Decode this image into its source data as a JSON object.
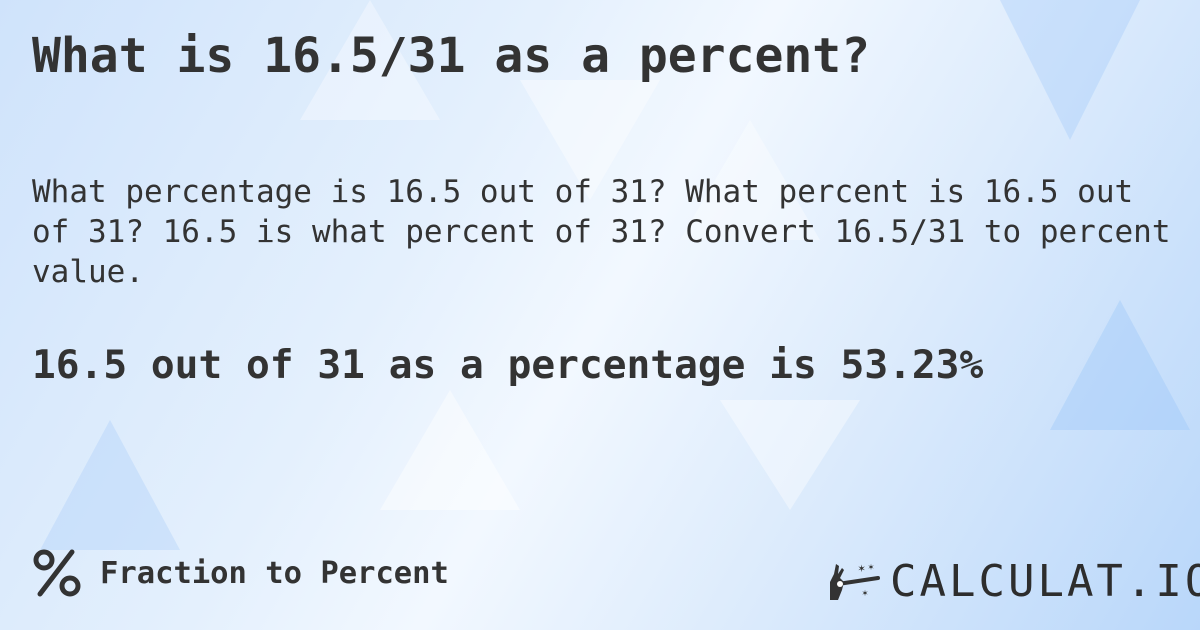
{
  "title": "What is 16.5/31 as a percent?",
  "question": "What percentage is 16.5 out of 31? What percent is 16.5 out of 31? 16.5 is what percent of 31? Convert 16.5/31 to percent value.",
  "answer": "16.5 out of 31 as a percentage is 53.23%",
  "footer": {
    "icon": "percent-icon",
    "label": "Fraction to Percent"
  },
  "logo": {
    "text": "CALCULAT.IO",
    "icon": "magic-hand-wand-icon"
  },
  "colors": {
    "text": "#333333",
    "background": "#dcebfc"
  }
}
